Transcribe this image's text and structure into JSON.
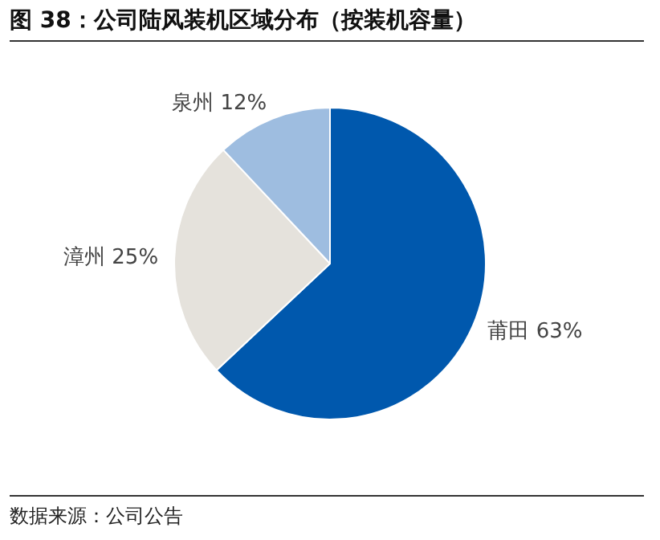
{
  "chart_data": {
    "type": "pie",
    "title": "图 38：公司陆风装机区域分布（按装机容量）",
    "categories": [
      "莆田",
      "漳州",
      "泉州"
    ],
    "values": [
      63,
      25,
      12
    ],
    "colors": [
      "#0058ad",
      "#e5e2dc",
      "#9ebde0"
    ],
    "value_labels": [
      "63%",
      "25%",
      "12%"
    ],
    "legend": false,
    "annotations": [
      "数据来源：公司公告"
    ]
  }
}
